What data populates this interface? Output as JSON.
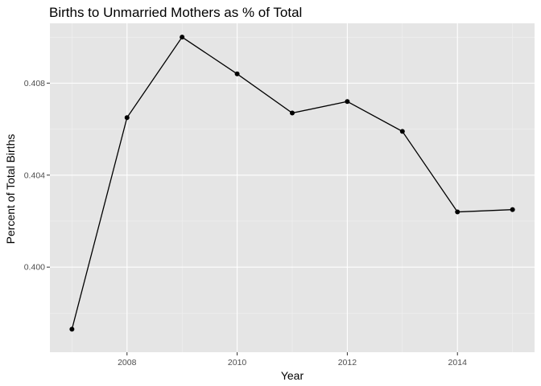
{
  "chart_data": {
    "type": "line",
    "title": "Births to Unmarried Mothers as % of Total",
    "xlabel": "Year",
    "ylabel": "Percent of Total Births",
    "x": [
      2007,
      2008,
      2009,
      2010,
      2011,
      2012,
      2013,
      2014,
      2015
    ],
    "series": [
      {
        "values": [
          0.3973,
          0.4065,
          0.41,
          0.4084,
          0.4067,
          0.4072,
          0.4059,
          0.4024,
          0.4025
        ]
      }
    ],
    "xlim": [
      2006.6,
      2015.4
    ],
    "ylim": [
      0.3963,
      0.4106
    ],
    "xticks": [
      2008,
      2010,
      2012,
      2014
    ],
    "xtick_labels": [
      "2008",
      "2010",
      "2012",
      "2014"
    ],
    "yticks": [
      0.4,
      0.404,
      0.408
    ],
    "ytick_labels": [
      "0.400",
      "0.404",
      "0.408"
    ],
    "grid": true,
    "colors": {
      "panel": "#e5e5e5",
      "line": "#000000",
      "point": "#000000"
    }
  }
}
